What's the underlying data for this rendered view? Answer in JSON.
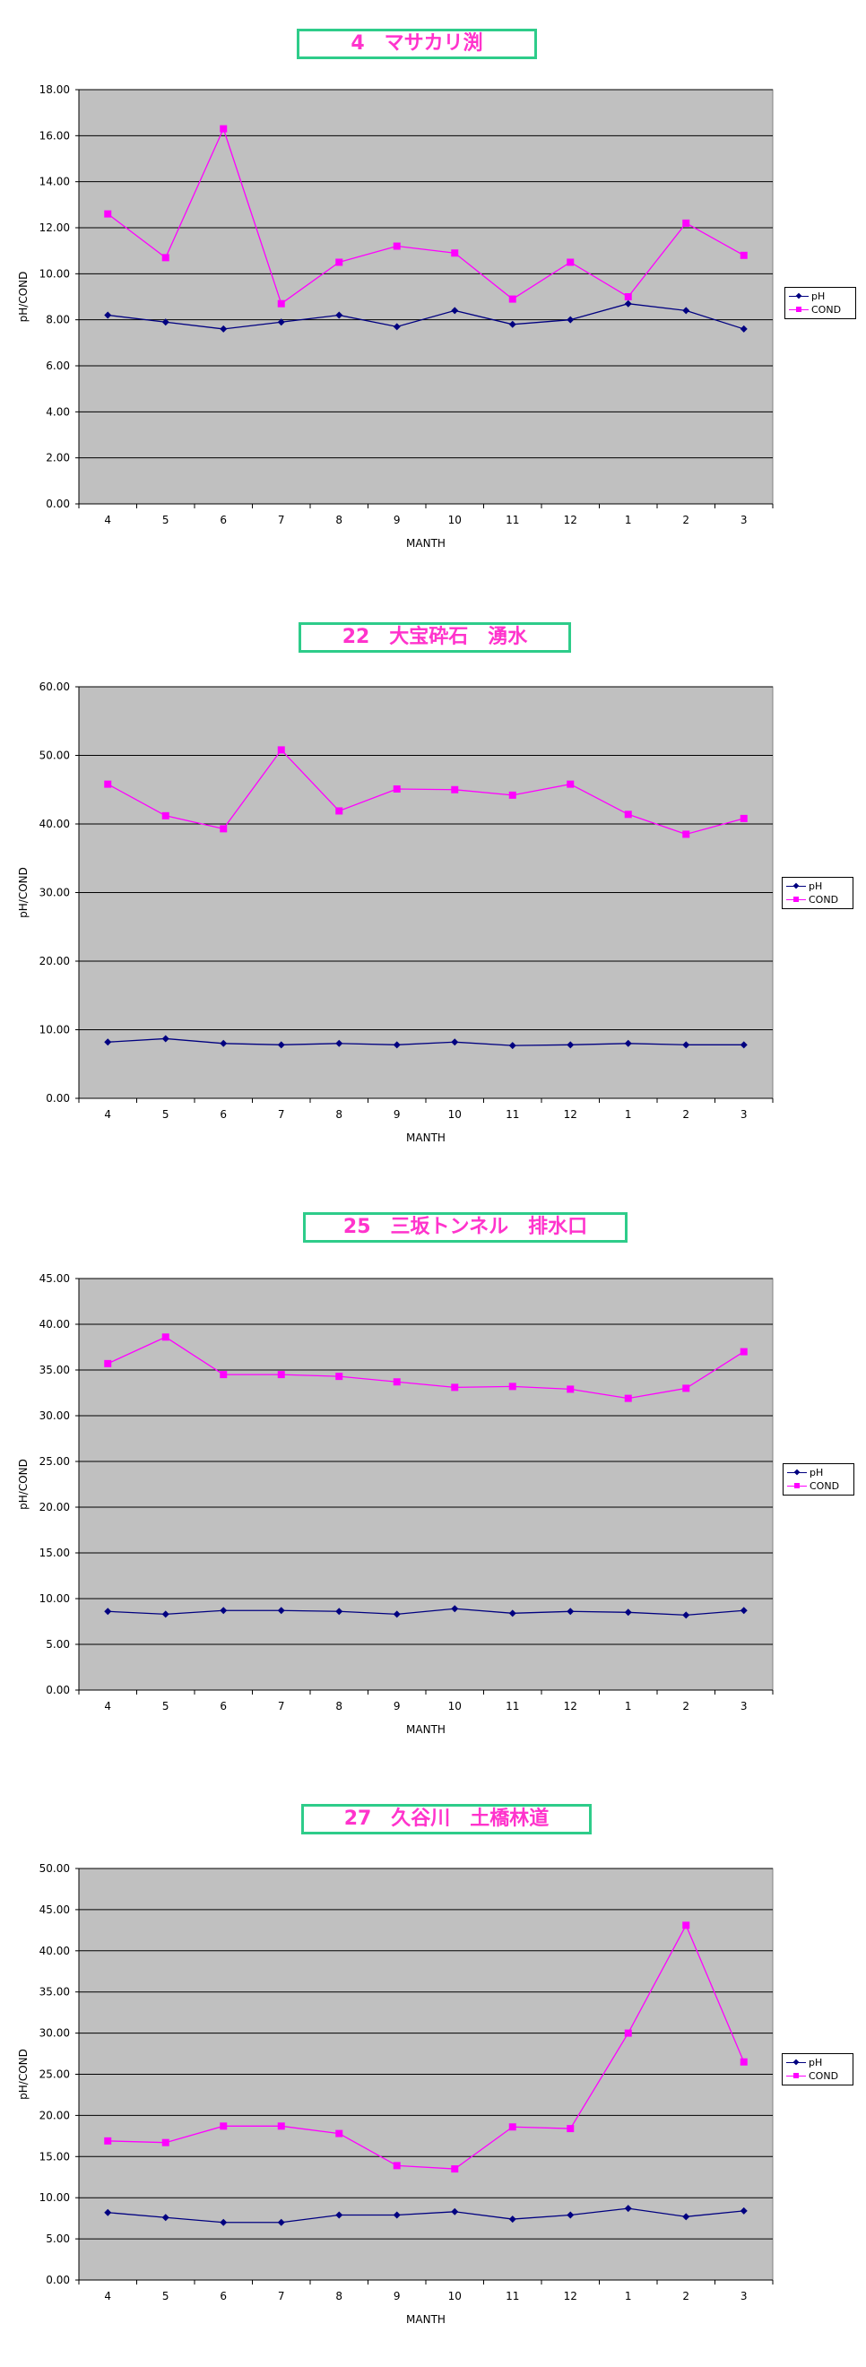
{
  "colors": {
    "ph": "#000080",
    "cond": "#ff00ff",
    "plot_bg": "#c0c0c0",
    "title_border": "#2ecc8a",
    "title_text": "#ff33cc"
  },
  "legend": {
    "ph": "pH",
    "cond": "COND"
  },
  "chart_data": [
    {
      "type": "line",
      "title": "4　マサカリ渕",
      "xlabel": "MANTH",
      "ylabel": "pH/COND",
      "ylim": [
        0,
        18
      ],
      "ytick_step": 2,
      "ytick_labels": [
        "0.00",
        "2.00",
        "4.00",
        "6.00",
        "8.00",
        "10.00",
        "12.00",
        "14.00",
        "16.00",
        "18.00"
      ],
      "categories": [
        "4",
        "5",
        "6",
        "7",
        "8",
        "9",
        "10",
        "11",
        "12",
        "1",
        "2",
        "3"
      ],
      "grid": true,
      "legend_position": "right",
      "series": [
        {
          "name": "pH",
          "values": [
            8.2,
            7.9,
            7.6,
            7.9,
            8.2,
            7.7,
            8.4,
            7.8,
            8.0,
            8.7,
            8.4,
            7.6
          ]
        },
        {
          "name": "COND",
          "values": [
            12.6,
            10.7,
            16.3,
            8.7,
            10.5,
            11.2,
            10.9,
            8.9,
            10.5,
            9.0,
            12.2,
            10.8
          ]
        }
      ]
    },
    {
      "type": "line",
      "title": "22　大宝砕石　湧水",
      "xlabel": "MANTH",
      "ylabel": "pH/COND",
      "ylim": [
        0,
        60
      ],
      "ytick_step": 10,
      "ytick_labels": [
        "0.00",
        "10.00",
        "20.00",
        "30.00",
        "40.00",
        "50.00",
        "60.00"
      ],
      "categories": [
        "4",
        "5",
        "6",
        "7",
        "8",
        "9",
        "10",
        "11",
        "12",
        "1",
        "2",
        "3"
      ],
      "grid": true,
      "legend_position": "right",
      "series": [
        {
          "name": "pH",
          "values": [
            8.2,
            8.7,
            8.0,
            7.8,
            8.0,
            7.8,
            8.2,
            7.7,
            7.8,
            8.0,
            7.8,
            7.8
          ]
        },
        {
          "name": "COND",
          "values": [
            45.8,
            41.2,
            39.3,
            50.8,
            41.9,
            45.1,
            45.0,
            44.2,
            45.8,
            41.4,
            38.5,
            40.8
          ]
        }
      ]
    },
    {
      "type": "line",
      "title": "25　三坂トンネル　排水口",
      "xlabel": "MANTH",
      "ylabel": "pH/COND",
      "ylim": [
        0,
        45
      ],
      "ytick_step": 5,
      "ytick_labels": [
        "0.00",
        "5.00",
        "10.00",
        "15.00",
        "20.00",
        "25.00",
        "30.00",
        "35.00",
        "40.00",
        "45.00"
      ],
      "categories": [
        "4",
        "5",
        "6",
        "7",
        "8",
        "9",
        "10",
        "11",
        "12",
        "1",
        "2",
        "3"
      ],
      "grid": true,
      "legend_position": "right",
      "series": [
        {
          "name": "pH",
          "values": [
            8.6,
            8.3,
            8.7,
            8.7,
            8.6,
            8.3,
            8.9,
            8.4,
            8.6,
            8.5,
            8.2,
            8.7
          ]
        },
        {
          "name": "COND",
          "values": [
            35.7,
            38.6,
            34.5,
            34.5,
            34.3,
            33.7,
            33.1,
            33.2,
            32.9,
            31.9,
            33.0,
            37.0
          ]
        }
      ]
    },
    {
      "type": "line",
      "title": "27　久谷川　土橋林道",
      "xlabel": "MANTH",
      "ylabel": "pH/COND",
      "ylim": [
        0,
        50
      ],
      "ytick_step": 5,
      "ytick_labels": [
        "0.00",
        "5.00",
        "10.00",
        "15.00",
        "20.00",
        "25.00",
        "30.00",
        "35.00",
        "40.00",
        "45.00",
        "50.00"
      ],
      "categories": [
        "4",
        "5",
        "6",
        "7",
        "8",
        "9",
        "10",
        "11",
        "12",
        "1",
        "2",
        "3"
      ],
      "grid": true,
      "legend_position": "right",
      "series": [
        {
          "name": "pH",
          "values": [
            8.2,
            7.6,
            7.0,
            7.0,
            7.9,
            7.9,
            8.3,
            7.4,
            7.9,
            8.7,
            7.7,
            8.4
          ]
        },
        {
          "name": "COND",
          "values": [
            16.9,
            16.7,
            18.7,
            18.7,
            17.8,
            13.9,
            13.5,
            18.6,
            18.4,
            30.0,
            43.1,
            26.5
          ]
        }
      ]
    }
  ]
}
